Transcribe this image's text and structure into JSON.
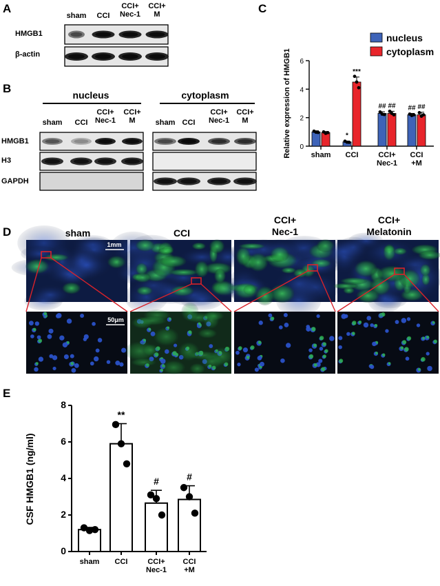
{
  "panels": {
    "A": {
      "letter": "A",
      "groups": [
        "sham",
        "CCI",
        "CCI+\nNec-1",
        "CCI+\nM"
      ],
      "rows": [
        "HMGB1",
        "β-actin"
      ]
    },
    "B": {
      "letter": "B",
      "nucleus_title": "nucleus",
      "cytoplasm_title": "cytoplasm",
      "groups": [
        "sham",
        "CCI",
        "CCI+\nNec-1",
        "CCI+\nM"
      ],
      "rows": [
        "HMGB1",
        "H3",
        "GAPDH"
      ]
    },
    "C": {
      "letter": "C"
    },
    "D": {
      "letter": "D",
      "columns": [
        "sham",
        "CCI",
        "CCI+\nNec-1",
        "CCI+\nMelatonin"
      ],
      "scale_top": "1mm",
      "scale_bottom": "50μm"
    },
    "E": {
      "letter": "E"
    }
  },
  "colors": {
    "nucleus": "#3E63B8",
    "cytoplasm": "#E8252B",
    "box_highlight": "#D9222A",
    "if_background": "#0B1020",
    "if_green": "#2EB84A",
    "if_blue": "#2A52C8"
  },
  "chart_data": [
    {
      "id": "C",
      "type": "bar",
      "ylabel": "Relative expression of HMGB1",
      "ylim": [
        0,
        6
      ],
      "yticks": [
        0,
        2,
        4,
        6
      ],
      "categories": [
        "sham",
        "CCI",
        "CCI+\nNec-1",
        "CCI\n+M"
      ],
      "legend_position": "top-right",
      "series": [
        {
          "name": "nucleus",
          "values": [
            1.0,
            0.3,
            2.3,
            2.2
          ],
          "errors": [
            0.08,
            0.06,
            0.12,
            0.1
          ],
          "points": [
            [
              1.05,
              0.98,
              0.96
            ],
            [
              0.35,
              0.28,
              0.27
            ],
            [
              2.4,
              2.25,
              2.22
            ],
            [
              2.25,
              2.15,
              2.2
            ]
          ],
          "annotations": [
            "",
            "*",
            "##",
            "##"
          ]
        },
        {
          "name": "cytoplasm",
          "values": [
            0.95,
            4.5,
            2.3,
            2.2
          ],
          "errors": [
            0.08,
            0.35,
            0.15,
            0.18
          ],
          "points": [
            [
              1.0,
              0.9,
              0.95
            ],
            [
              4.9,
              4.5,
              4.1
            ],
            [
              2.45,
              2.3,
              2.2
            ],
            [
              2.35,
              2.1,
              2.2
            ]
          ],
          "annotations": [
            "",
            "***",
            "##",
            "##"
          ]
        }
      ]
    },
    {
      "id": "E",
      "type": "bar",
      "ylabel": "CSF HMGB1 (ng/ml)",
      "ylim": [
        0,
        8
      ],
      "yticks": [
        0,
        2,
        4,
        6,
        8
      ],
      "categories": [
        "sham",
        "CCI",
        "CCI+\nNec-1",
        "CCI\n+M"
      ],
      "series": [
        {
          "name": "",
          "values": [
            1.2,
            5.9,
            2.65,
            2.85
          ],
          "errors": [
            0.12,
            1.1,
            0.7,
            0.75
          ],
          "points": [
            [
              1.3,
              1.15,
              1.2
            ],
            [
              6.95,
              5.9,
              4.8
            ],
            [
              3.1,
              2.9,
              2.0
            ],
            [
              3.5,
              3.0,
              2.1
            ]
          ],
          "annotations": [
            "",
            "**",
            "#",
            "#"
          ]
        }
      ]
    }
  ]
}
